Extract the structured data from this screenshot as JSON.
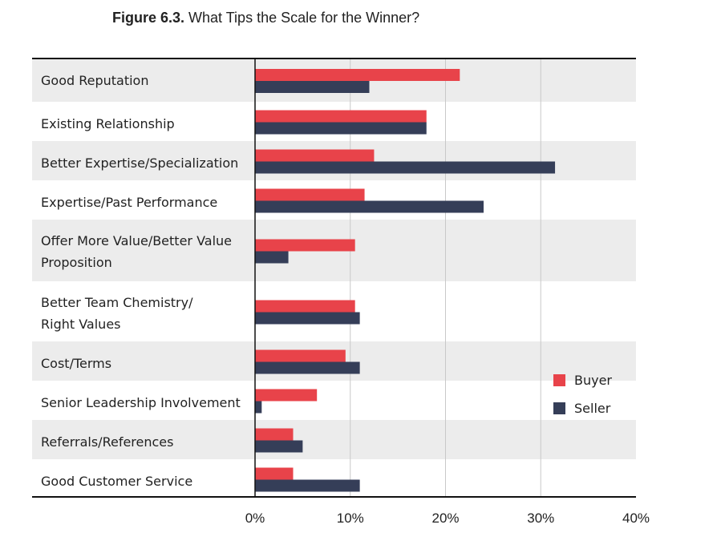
{
  "title": {
    "figure_label": "Figure 6.3.",
    "text": "What Tips the Scale for the Winner?"
  },
  "colors": {
    "buyer": "#e8434a",
    "seller": "#353e58",
    "band": "#ececec",
    "grid": "#c8c8c8",
    "axis": "#111111"
  },
  "chart_data": {
    "type": "bar",
    "orientation": "horizontal",
    "title": "What Tips the Scale for the Winner?",
    "categories": [
      [
        "Good Reputation"
      ],
      [
        "Existing Relationship"
      ],
      [
        "Better Expertise/Specialization"
      ],
      [
        "Expertise/Past Performance"
      ],
      [
        "Offer More Value/Better Value",
        "Proposition"
      ],
      [
        "Better Team Chemistry/",
        "Right Values"
      ],
      [
        "Cost/Terms"
      ],
      [
        "Senior Leadership Involvement"
      ],
      [
        "Referrals/References"
      ],
      [
        "Good Customer Service"
      ]
    ],
    "series": [
      {
        "name": "Buyer",
        "values": [
          21.5,
          18,
          12.5,
          11.5,
          10.5,
          10.5,
          9.5,
          6.5,
          4,
          4
        ]
      },
      {
        "name": "Seller",
        "values": [
          12,
          18,
          31.5,
          24,
          3.5,
          11,
          11,
          0.7,
          5,
          11
        ]
      }
    ],
    "xlim": [
      0,
      40
    ],
    "xticks": [
      "0%",
      "10%",
      "20%",
      "30%",
      "40%"
    ],
    "grid": true,
    "legend_position": "right"
  }
}
